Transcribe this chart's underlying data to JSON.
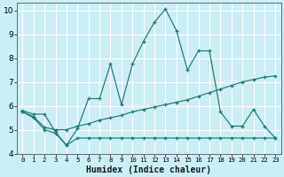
{
  "xlabel": "Humidex (Indice chaleur)",
  "bg_color": "#cceef5",
  "grid_color": "#ffffff",
  "line_color": "#1a7a6e",
  "x_ticks": [
    0,
    1,
    2,
    3,
    4,
    5,
    6,
    7,
    8,
    9,
    10,
    11,
    12,
    13,
    14,
    15,
    16,
    17,
    18,
    19,
    20,
    21,
    22,
    23
  ],
  "ylim": [
    4.0,
    10.3
  ],
  "xlim": [
    -0.5,
    23.5
  ],
  "yticks": [
    4,
    5,
    6,
    7,
    8,
    9,
    10
  ],
  "line1_x": [
    0,
    1,
    2,
    3,
    4,
    5,
    6,
    7,
    8,
    9,
    10,
    11,
    12,
    13,
    14,
    15,
    16,
    17,
    18,
    19,
    20,
    21,
    22,
    23
  ],
  "line1_y": [
    5.8,
    5.65,
    5.65,
    4.9,
    4.35,
    5.05,
    6.3,
    6.3,
    7.75,
    6.05,
    7.75,
    8.7,
    9.5,
    10.05,
    9.15,
    7.5,
    8.3,
    8.3,
    5.75,
    5.15,
    5.15,
    5.85,
    5.15,
    4.65
  ],
  "line2_x": [
    0,
    1,
    2,
    3,
    4,
    5,
    6,
    7,
    8,
    9,
    10,
    11,
    12,
    13,
    14,
    15,
    16,
    17,
    18,
    19,
    20,
    21,
    22,
    23
  ],
  "line2_y": [
    5.75,
    5.55,
    5.1,
    5.0,
    5.0,
    5.15,
    5.25,
    5.4,
    5.5,
    5.6,
    5.75,
    5.85,
    5.95,
    6.05,
    6.15,
    6.25,
    6.4,
    6.55,
    6.7,
    6.85,
    7.0,
    7.1,
    7.2,
    7.25
  ],
  "line3_x": [
    0,
    1,
    2,
    3,
    4,
    5,
    6,
    7,
    8,
    9,
    10,
    11,
    12,
    13,
    14,
    15,
    16,
    17,
    18,
    19,
    20,
    21,
    22,
    23
  ],
  "line3_y": [
    5.75,
    5.5,
    5.0,
    4.85,
    4.35,
    4.65,
    4.65,
    4.65,
    4.65,
    4.65,
    4.65,
    4.65,
    4.65,
    4.65,
    4.65,
    4.65,
    4.65,
    4.65,
    4.65,
    4.65,
    4.65,
    4.65,
    4.65,
    4.65
  ]
}
